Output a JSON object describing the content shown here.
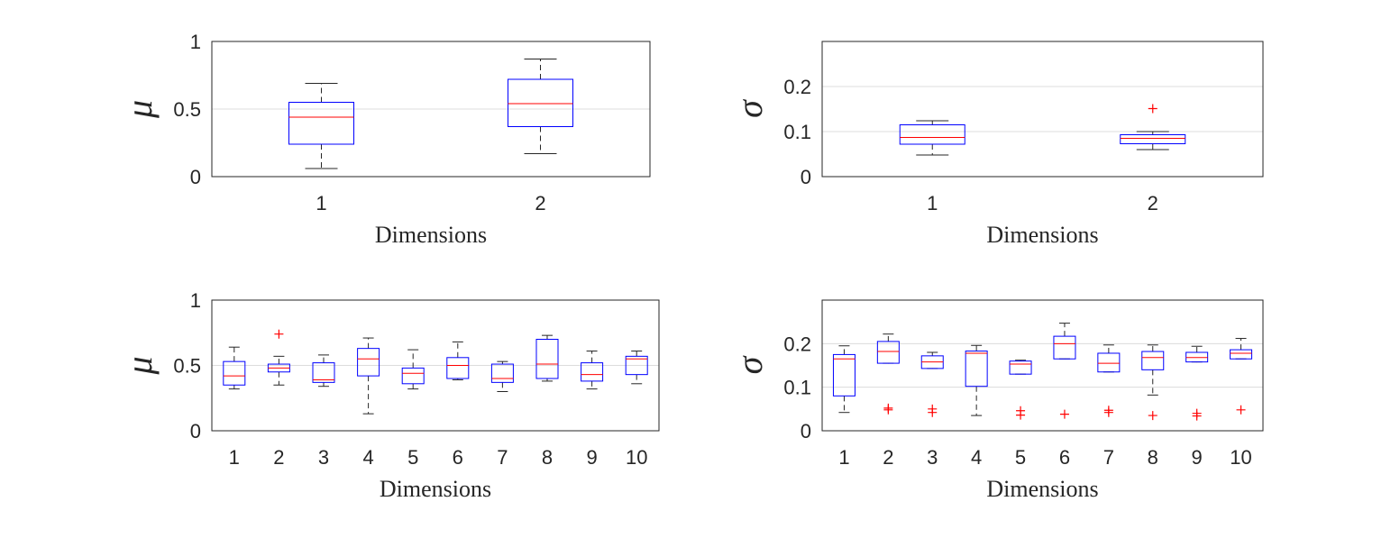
{
  "chart_data": [
    {
      "type": "box",
      "panel": "top-left",
      "ylabel": "μ",
      "xlabel": "Dimensions",
      "ylim": [
        0,
        1
      ],
      "yticks": [
        0,
        0.5,
        1
      ],
      "ytick_labels": [
        "0",
        "0.5",
        "1"
      ],
      "grid": "horizontal",
      "categories": [
        "1",
        "2"
      ],
      "boxes": [
        {
          "q1": 0.24,
          "median": 0.44,
          "q3": 0.55,
          "whisker_low": 0.06,
          "whisker_high": 0.69,
          "outliers": []
        },
        {
          "q1": 0.37,
          "median": 0.54,
          "q3": 0.72,
          "whisker_low": 0.17,
          "whisker_high": 0.87,
          "outliers": []
        }
      ]
    },
    {
      "type": "box",
      "panel": "top-right",
      "ylabel": "σ",
      "xlabel": "Dimensions",
      "ylim": [
        0,
        0.3
      ],
      "yticks": [
        0,
        0.1,
        0.2
      ],
      "ytick_labels": [
        "0",
        "0.1",
        "0.2"
      ],
      "grid": "horizontal",
      "categories": [
        "1",
        "2"
      ],
      "boxes": [
        {
          "q1": 0.072,
          "median": 0.087,
          "q3": 0.115,
          "whisker_low": 0.048,
          "whisker_high": 0.124,
          "outliers": []
        },
        {
          "q1": 0.073,
          "median": 0.085,
          "q3": 0.093,
          "whisker_low": 0.06,
          "whisker_high": 0.1,
          "outliers": [
            0.151
          ]
        }
      ]
    },
    {
      "type": "box",
      "panel": "bottom-left",
      "ylabel": "μ",
      "xlabel": "Dimensions",
      "ylim": [
        0,
        1
      ],
      "yticks": [
        0,
        0.5,
        1
      ],
      "ytick_labels": [
        "0",
        "0.5",
        "1"
      ],
      "grid": "horizontal",
      "categories": [
        "1",
        "2",
        "3",
        "4",
        "5",
        "6",
        "7",
        "8",
        "9",
        "10"
      ],
      "boxes": [
        {
          "q1": 0.35,
          "median": 0.42,
          "q3": 0.53,
          "whisker_low": 0.32,
          "whisker_high": 0.64,
          "outliers": []
        },
        {
          "q1": 0.45,
          "median": 0.48,
          "q3": 0.51,
          "whisker_low": 0.35,
          "whisker_high": 0.57,
          "outliers": [
            0.74
          ]
        },
        {
          "q1": 0.37,
          "median": 0.39,
          "q3": 0.52,
          "whisker_low": 0.34,
          "whisker_high": 0.58,
          "outliers": []
        },
        {
          "q1": 0.42,
          "median": 0.55,
          "q3": 0.63,
          "whisker_low": 0.13,
          "whisker_high": 0.71,
          "outliers": []
        },
        {
          "q1": 0.36,
          "median": 0.44,
          "q3": 0.48,
          "whisker_low": 0.32,
          "whisker_high": 0.62,
          "outliers": []
        },
        {
          "q1": 0.4,
          "median": 0.5,
          "q3": 0.56,
          "whisker_low": 0.39,
          "whisker_high": 0.68,
          "outliers": []
        },
        {
          "q1": 0.37,
          "median": 0.4,
          "q3": 0.51,
          "whisker_low": 0.3,
          "whisker_high": 0.53,
          "outliers": []
        },
        {
          "q1": 0.4,
          "median": 0.51,
          "q3": 0.7,
          "whisker_low": 0.38,
          "whisker_high": 0.73,
          "outliers": []
        },
        {
          "q1": 0.38,
          "median": 0.43,
          "q3": 0.52,
          "whisker_low": 0.32,
          "whisker_high": 0.61,
          "outliers": []
        },
        {
          "q1": 0.43,
          "median": 0.55,
          "q3": 0.57,
          "whisker_low": 0.36,
          "whisker_high": 0.61,
          "outliers": []
        }
      ]
    },
    {
      "type": "box",
      "panel": "bottom-right",
      "ylabel": "σ",
      "xlabel": "Dimensions",
      "ylim": [
        0,
        0.3
      ],
      "yticks": [
        0,
        0.1,
        0.2
      ],
      "ytick_labels": [
        "0",
        "0.1",
        "0.2"
      ],
      "grid": "horizontal",
      "categories": [
        "1",
        "2",
        "3",
        "4",
        "5",
        "6",
        "7",
        "8",
        "9",
        "10"
      ],
      "boxes": [
        {
          "q1": 0.08,
          "median": 0.165,
          "q3": 0.175,
          "whisker_low": 0.042,
          "whisker_high": 0.195,
          "outliers": []
        },
        {
          "q1": 0.155,
          "median": 0.182,
          "q3": 0.205,
          "whisker_low": 0.155,
          "whisker_high": 0.222,
          "outliers": [
            0.052,
            0.048
          ]
        },
        {
          "q1": 0.143,
          "median": 0.158,
          "q3": 0.172,
          "whisker_low": 0.143,
          "whisker_high": 0.18,
          "outliers": [
            0.05,
            0.042
          ]
        },
        {
          "q1": 0.102,
          "median": 0.178,
          "q3": 0.183,
          "whisker_low": 0.035,
          "whisker_high": 0.196,
          "outliers": []
        },
        {
          "q1": 0.13,
          "median": 0.153,
          "q3": 0.16,
          "whisker_low": 0.13,
          "whisker_high": 0.162,
          "outliers": [
            0.046,
            0.036
          ]
        },
        {
          "q1": 0.165,
          "median": 0.2,
          "q3": 0.217,
          "whisker_low": 0.165,
          "whisker_high": 0.247,
          "outliers": [
            0.038
          ]
        },
        {
          "q1": 0.135,
          "median": 0.155,
          "q3": 0.178,
          "whisker_low": 0.135,
          "whisker_high": 0.197,
          "outliers": [
            0.047,
            0.042
          ]
        },
        {
          "q1": 0.14,
          "median": 0.168,
          "q3": 0.182,
          "whisker_low": 0.082,
          "whisker_high": 0.197,
          "outliers": [
            0.035
          ]
        },
        {
          "q1": 0.158,
          "median": 0.168,
          "q3": 0.18,
          "whisker_low": 0.158,
          "whisker_high": 0.194,
          "outliers": [
            0.04,
            0.034
          ]
        },
        {
          "q1": 0.165,
          "median": 0.178,
          "q3": 0.186,
          "whisker_low": 0.165,
          "whisker_high": 0.212,
          "outliers": [
            0.048
          ]
        }
      ]
    }
  ]
}
